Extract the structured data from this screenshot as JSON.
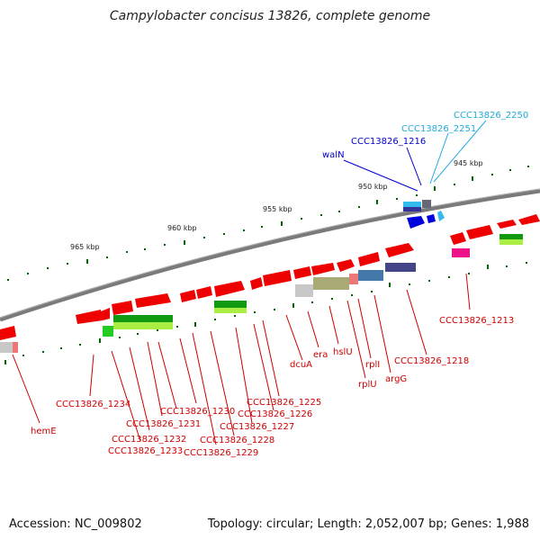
{
  "title": "Campylobacter concisus 13826, complete genome",
  "accession": "Accession: NC_009802",
  "topology": "Topology: circular; Length: 2,052,007 bp; Genes: 1,988",
  "scale_labels": [
    "945 kbp",
    "950 kbp",
    "955 kbp",
    "960 kbp",
    "965 kbp"
  ],
  "gene_labels": {
    "hemE": "hemE",
    "ccc1234": "CCC13826_1234",
    "ccc1233": "CCC13826_1233",
    "ccc1232": "CCC13826_1232",
    "ccc1231": "CCC13826_1231",
    "ccc1230": "CCC13826_1230",
    "ccc1229": "CCC13826_1229",
    "ccc1228": "CCC13826_1228",
    "ccc1227": "CCC13826_1227",
    "ccc1226": "CCC13826_1226",
    "ccc1225": "CCC13826_1225",
    "dcuA": "dcuA",
    "era": "era",
    "hslU": "hslU",
    "rplU": "rplU",
    "rplI": "rplI",
    "argG": "argG",
    "ccc1218": "CCC13826_1218",
    "ccc1213": "CCC13826_1213",
    "walN": "walN",
    "ccc1216": "CCC13826_1216",
    "ccc2251": "CCC13826_2251",
    "ccc2250": "CCC13826_2250"
  },
  "colors": {
    "gene_red": "#ee0000",
    "backbone": "#888888",
    "tick_green": "#006600",
    "label_red": "#cc0000",
    "label_blue": "#0000cc",
    "label_cyan": "#22aadd"
  }
}
